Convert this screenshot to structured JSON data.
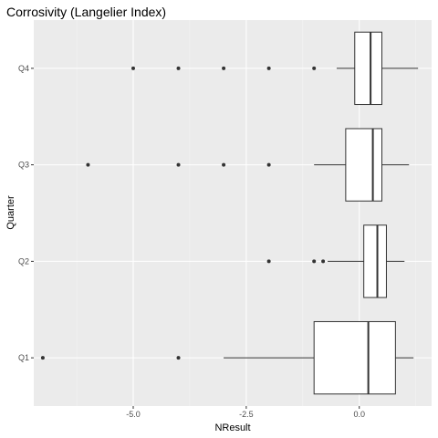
{
  "chart_data": {
    "type": "boxplot",
    "orientation": "horizontal",
    "title": "Corrosivity (Langelier Index)",
    "xlabel": "NResult",
    "ylabel": "Quarter",
    "xlim": [
      -7.2,
      1.6
    ],
    "x_ticks": [
      -5.0,
      -2.5,
      0.0
    ],
    "x_tick_labels": [
      "-5.0",
      "-2.5",
      "0.0"
    ],
    "x_minor_ticks": [
      -6.25,
      -3.75,
      -1.25,
      1.25
    ],
    "categories": [
      "Q1",
      "Q2",
      "Q3",
      "Q4"
    ],
    "grid": true,
    "boxes": [
      {
        "category": "Q1",
        "whisker_low": -3.0,
        "q1": -1.0,
        "median": 0.2,
        "q3": 0.8,
        "whisker_high": 1.2,
        "outliers": [
          -7.0,
          -4.0
        ]
      },
      {
        "category": "Q2",
        "whisker_low": -0.7,
        "q1": 0.1,
        "median": 0.4,
        "q3": 0.6,
        "whisker_high": 1.0,
        "outliers": [
          -2.0,
          -1.0,
          -0.8
        ]
      },
      {
        "category": "Q3",
        "whisker_low": -1.0,
        "q1": -0.3,
        "median": 0.3,
        "q3": 0.5,
        "whisker_high": 1.1,
        "outliers": [
          -6.0,
          -4.0,
          -3.0,
          -2.0
        ]
      },
      {
        "category": "Q4",
        "whisker_low": -0.5,
        "q1": -0.1,
        "median": 0.25,
        "q3": 0.5,
        "whisker_high": 1.3,
        "outliers": [
          -5.0,
          -4.0,
          -3.0,
          -2.0,
          -1.0
        ]
      }
    ],
    "colors": {
      "panel_background": "#ebebeb",
      "major_grid": "#ffffff",
      "box_fill": "#ffffff",
      "box_stroke": "#333333",
      "outlier": "#333333"
    }
  }
}
